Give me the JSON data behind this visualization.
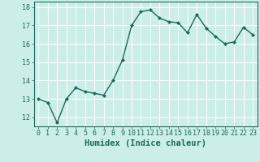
{
  "x": [
    0,
    1,
    2,
    3,
    4,
    5,
    6,
    7,
    8,
    9,
    10,
    11,
    12,
    13,
    14,
    15,
    16,
    17,
    18,
    19,
    20,
    21,
    22,
    23
  ],
  "y": [
    13.0,
    12.8,
    11.7,
    13.0,
    13.6,
    13.4,
    13.3,
    13.2,
    14.0,
    15.1,
    17.0,
    17.75,
    17.85,
    17.4,
    17.2,
    17.15,
    16.6,
    17.6,
    16.85,
    16.4,
    16.0,
    16.1,
    16.9,
    16.5
  ],
  "line_color": "#1a6b5e",
  "marker": "D",
  "marker_size": 2.0,
  "bg_color": "#cceee8",
  "grid_color": "#ffffff",
  "xlabel": "Humidex (Indice chaleur)",
  "xlabel_fontsize": 7.5,
  "xlabel_fontweight": "bold",
  "ylabel_ticks": [
    12,
    13,
    14,
    15,
    16,
    17,
    18
  ],
  "xlim": [
    -0.5,
    23.5
  ],
  "ylim": [
    11.5,
    18.3
  ],
  "xticks": [
    0,
    1,
    2,
    3,
    4,
    5,
    6,
    7,
    8,
    9,
    10,
    11,
    12,
    13,
    14,
    15,
    16,
    17,
    18,
    19,
    20,
    21,
    22,
    23
  ],
  "tick_fontsize": 6.0,
  "linewidth": 1.0
}
